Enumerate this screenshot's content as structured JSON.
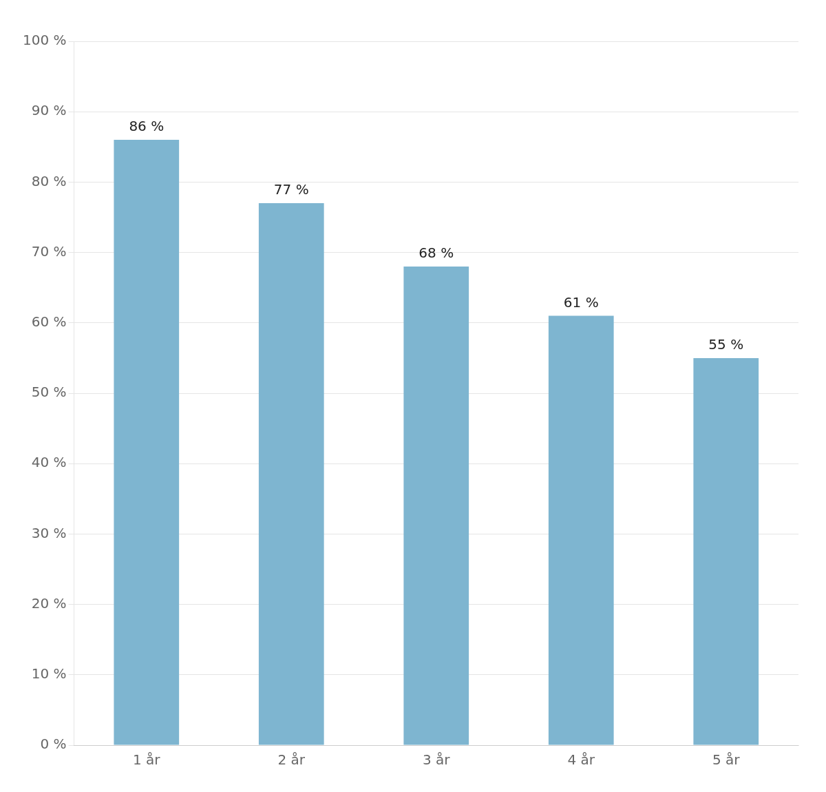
{
  "chart_data": {
    "type": "bar",
    "categories": [
      "1 år",
      "2 år",
      "3 år",
      "4 år",
      "5 år"
    ],
    "values": [
      86,
      77,
      68,
      61,
      55
    ],
    "value_labels": [
      "86 %",
      "77 %",
      "68 %",
      "61 %",
      "55 %"
    ],
    "color": "#7eb5d0",
    "ylim": [
      0,
      100
    ],
    "yticks": [
      {
        "value": 0,
        "label": "0 %"
      },
      {
        "value": 10,
        "label": "10 %"
      },
      {
        "value": 20,
        "label": "20 %"
      },
      {
        "value": 30,
        "label": "30 %"
      },
      {
        "value": 40,
        "label": "40 %"
      },
      {
        "value": 50,
        "label": "50 %"
      },
      {
        "value": 60,
        "label": "60 %"
      },
      {
        "value": 70,
        "label": "70 %"
      },
      {
        "value": 80,
        "label": "80 %"
      },
      {
        "value": 90,
        "label": "90 %"
      },
      {
        "value": 100,
        "label": "100 %"
      }
    ],
    "grid": true,
    "data_labels": true
  }
}
